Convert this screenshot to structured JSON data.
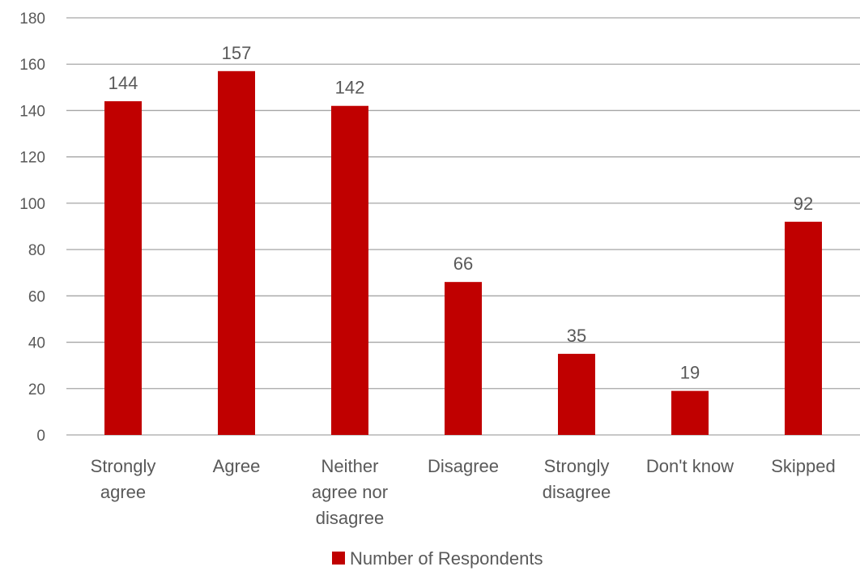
{
  "chart_data": {
    "type": "bar",
    "title": "",
    "xlabel": "",
    "ylabel": "",
    "categories": [
      [
        "Strongly",
        "agree"
      ],
      [
        "Agree"
      ],
      [
        "Neither",
        "agree nor",
        "disagree"
      ],
      [
        "Disagree"
      ],
      [
        "Strongly",
        "disagree"
      ],
      [
        "Don't know"
      ],
      [
        "Skipped"
      ]
    ],
    "series": [
      {
        "name": "Number of Respondents",
        "color": "#C00000",
        "values": [
          144,
          157,
          142,
          66,
          35,
          19,
          92
        ]
      }
    ],
    "ylim": [
      0,
      180
    ],
    "yticks": [
      0,
      20,
      40,
      60,
      80,
      100,
      120,
      140,
      160,
      180
    ],
    "grid": true,
    "data_labels": true,
    "legend_position": "bottom"
  }
}
